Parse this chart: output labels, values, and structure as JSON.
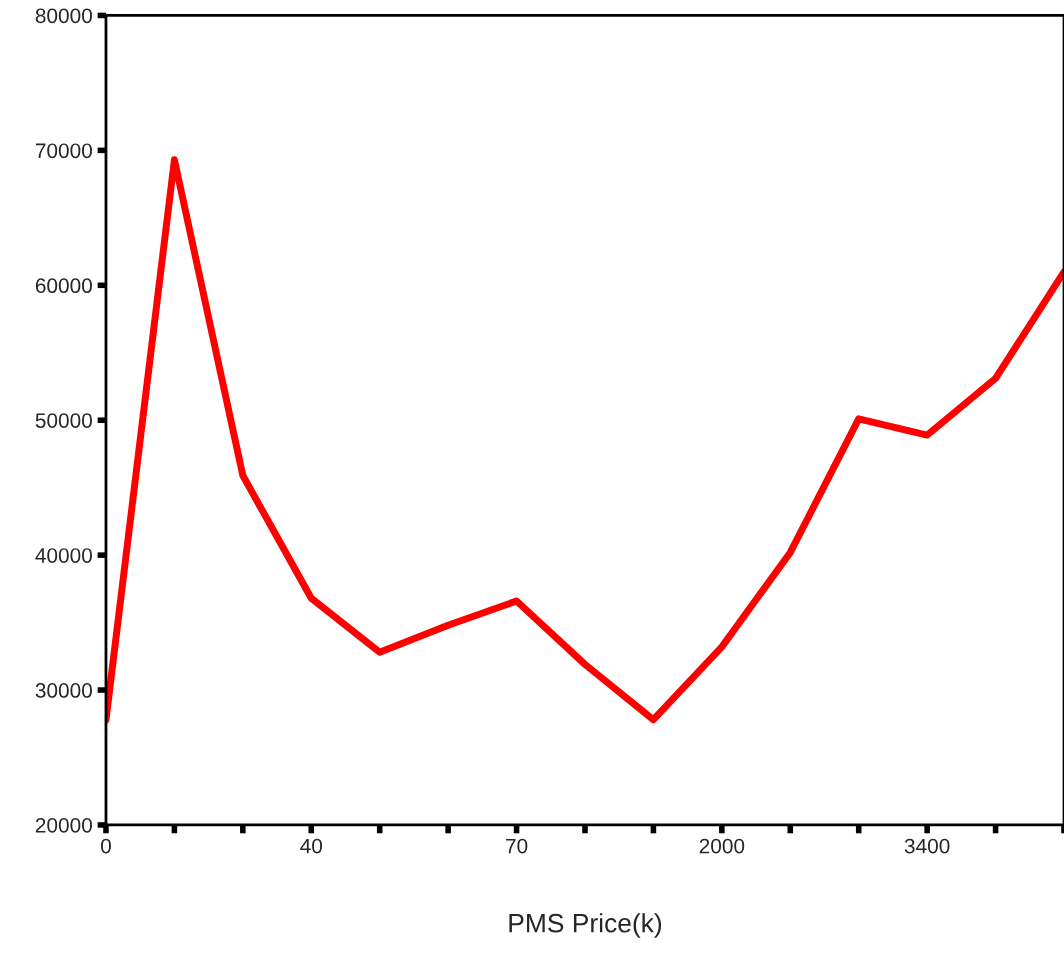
{
  "chart_data": {
    "type": "line",
    "xlabel": "PMS Price(k)",
    "categories": [
      "0",
      null,
      null,
      "40",
      null,
      null,
      "70",
      null,
      null,
      "2000",
      null,
      null,
      "3400",
      null,
      null
    ],
    "series": [
      {
        "color": "#ff0000",
        "values": [
          27800,
          69300,
          45900,
          36800,
          32800,
          34800,
          36600,
          31900,
          27800,
          33200,
          40200,
          50100,
          48900,
          53100,
          61000
        ]
      }
    ],
    "ylim": [
      20000,
      80000
    ],
    "yticks": [
      20000,
      30000,
      40000,
      50000,
      60000,
      70000,
      80000
    ],
    "grid": false,
    "legend": false,
    "marker": "none",
    "line_style": "solid"
  }
}
